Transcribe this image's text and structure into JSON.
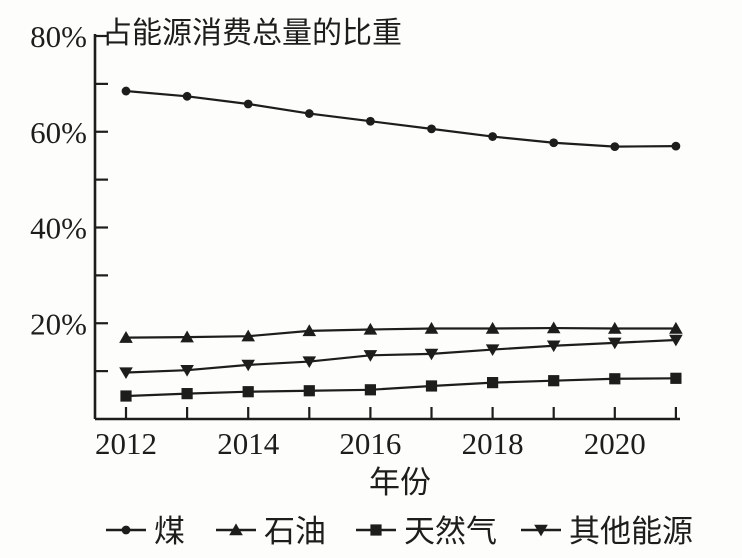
{
  "figure": {
    "ink": "#1d1d1b",
    "background": "#fdfdfb"
  },
  "chart_data": {
    "type": "line",
    "title": "占能源消费总量的比重",
    "xlabel": "年份",
    "ylabel": "",
    "ylim": [
      0,
      80
    ],
    "grid": false,
    "legend_position": "bottom",
    "x": [
      2012,
      2013,
      2014,
      2015,
      2016,
      2017,
      2018,
      2019,
      2020,
      2021
    ],
    "x_axis": {
      "ticks": [
        2012,
        2013,
        2014,
        2015,
        2016,
        2017,
        2018,
        2019,
        2020,
        2021
      ],
      "labels": {
        "2012": "2012",
        "2014": "2014",
        "2016": "2016",
        "2018": "2018",
        "2020": "2020"
      }
    },
    "y_axis": {
      "ticks": [
        10,
        20,
        30,
        40,
        50,
        60,
        70,
        80
      ],
      "labels": {
        "20": "20%",
        "40": "40%",
        "60": "60%",
        "80": "80%"
      }
    },
    "series": [
      {
        "id": "coal",
        "name": "煤",
        "marker": "circle",
        "values": [
          68.5,
          67.4,
          65.8,
          63.8,
          62.2,
          60.6,
          59.0,
          57.7,
          56.9,
          57.0
        ]
      },
      {
        "id": "oil",
        "name": "石油",
        "marker": "triangle-up",
        "values": [
          17.0,
          17.1,
          17.3,
          18.4,
          18.7,
          18.9,
          18.9,
          19.0,
          18.9,
          18.9
        ]
      },
      {
        "id": "natural-gas",
        "name": "天然气",
        "marker": "square",
        "values": [
          4.8,
          5.3,
          5.7,
          5.9,
          6.1,
          6.9,
          7.6,
          8.0,
          8.4,
          8.5
        ]
      },
      {
        "id": "other-energy",
        "name": "其他能源",
        "marker": "triangle-down",
        "values": [
          9.7,
          10.2,
          11.3,
          12.0,
          13.3,
          13.6,
          14.5,
          15.3,
          15.9,
          16.5
        ]
      }
    ]
  }
}
